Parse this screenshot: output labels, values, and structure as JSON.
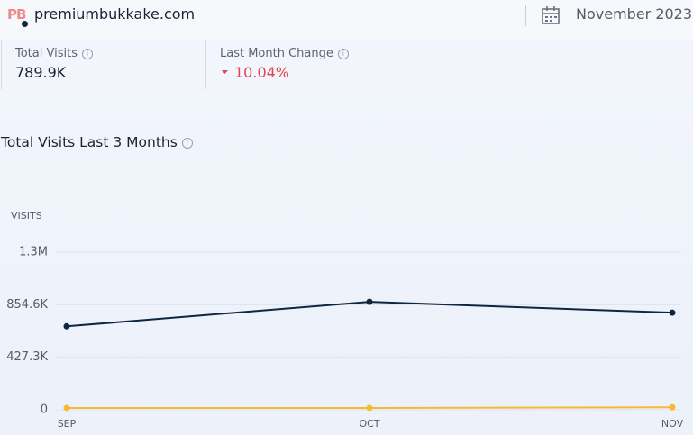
{
  "header": {
    "logo": "PB",
    "domain": "premiumbukkake.com",
    "date": "November 2023"
  },
  "metrics": [
    {
      "label": "Total Visits",
      "value": "789.9K"
    },
    {
      "label": "Last Month Change",
      "value": "10.04%"
    }
  ],
  "chart_data": {
    "type": "line",
    "title": "Total Visits Last 3 Months",
    "y_label": "VISITS",
    "categories": [
      "SEP",
      "OCT",
      "NOV"
    ],
    "series": [
      {
        "color": "#0f2640",
        "values": [
          679000,
          878100,
          789900
        ]
      },
      {
        "color": "#f7b92f",
        "values": [
          15000,
          15000,
          20000
        ]
      }
    ],
    "ylim": [
      0,
      1281900
    ],
    "yticks": [
      0,
      {
        "value": 427300,
        "label": "427.3K"
      },
      {
        "value": 854600,
        "label": "854.6K"
      },
      {
        "value": 1281900,
        "label": "1.3M"
      }
    ],
    "grid": true
  }
}
